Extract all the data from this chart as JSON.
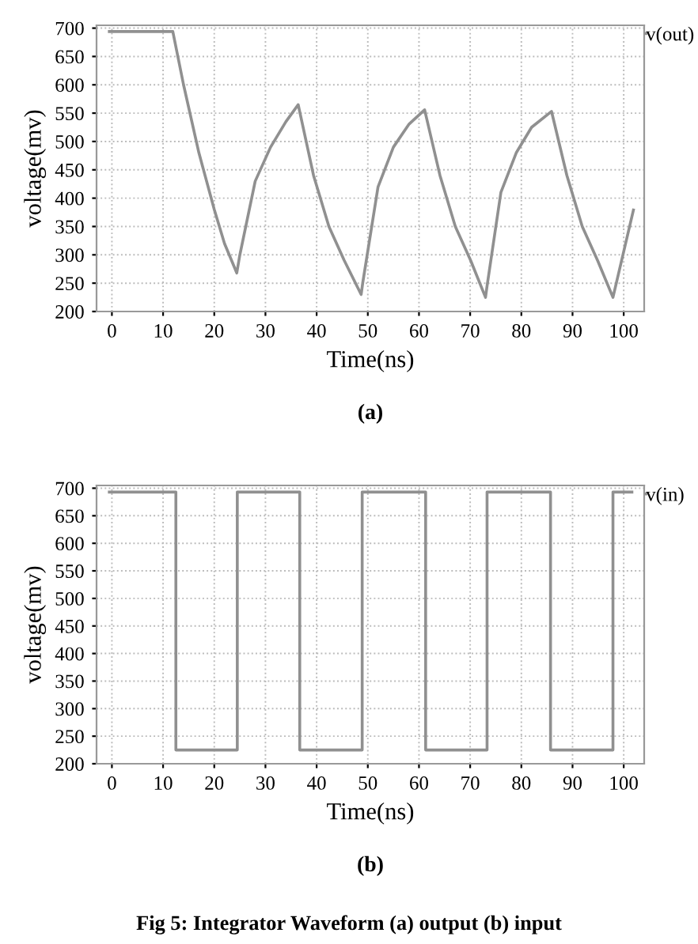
{
  "chart_data": [
    {
      "type": "line",
      "xlabel": "Time(ns)",
      "ylabel": "voltage(mv)",
      "annotations": [
        "(a)"
      ],
      "xlim": [
        -3,
        104
      ],
      "ylim": [
        200,
        705
      ],
      "xticks": [
        0,
        10,
        20,
        30,
        40,
        50,
        60,
        70,
        80,
        90,
        100
      ],
      "yticks": [
        200,
        250,
        300,
        350,
        400,
        450,
        500,
        550,
        600,
        650,
        700
      ],
      "grid": true,
      "legend": "top right",
      "marker": "none",
      "line_style": "solid",
      "series": [
        {
          "name": "v(out)",
          "color": "#909090",
          "x": [
            -0.5,
            11.9,
            14,
            17,
            20,
            22,
            24.4,
            25,
            28,
            31,
            34,
            36.4,
            39.4,
            42.4,
            45.4,
            48.7,
            49,
            52,
            55,
            58,
            61.1,
            64.1,
            67.1,
            70.1,
            73,
            73.3,
            76,
            79,
            82,
            85.9,
            88.9,
            91.9,
            94.9,
            97.9,
            101.9
          ],
          "values": [
            694,
            694,
            600,
            480,
            380,
            320,
            268,
            300,
            430,
            490,
            535,
            565,
            440,
            350,
            290,
            230,
            250,
            420,
            490,
            530,
            556,
            440,
            350,
            290,
            225,
            245,
            410,
            480,
            525,
            553,
            440,
            350,
            290,
            225,
            379
          ]
        }
      ]
    },
    {
      "type": "step",
      "xlabel": "Time(ns)",
      "ylabel": "voltage(mv)",
      "annotations": [
        "(b)",
        "Fig 5: Integrator Waveform (a) output (b) input"
      ],
      "xlim": [
        -3,
        104
      ],
      "ylim": [
        200,
        705
      ],
      "xticks": [
        0,
        10,
        20,
        30,
        40,
        50,
        60,
        70,
        80,
        90,
        100
      ],
      "yticks": [
        200,
        250,
        300,
        350,
        400,
        450,
        500,
        550,
        600,
        650,
        700
      ],
      "grid": true,
      "legend": "top right",
      "marker": "none",
      "line_style": "solid",
      "series": [
        {
          "name": "v(in)",
          "color": "#909090",
          "x": [
            -0.5,
            12.5,
            24.5,
            36.7,
            48.9,
            61.3,
            73.3,
            85.7,
            97.9,
            101.6
          ],
          "values": [
            693,
            225,
            693,
            225,
            693,
            225,
            693,
            225,
            693,
            693
          ]
        }
      ]
    }
  ]
}
